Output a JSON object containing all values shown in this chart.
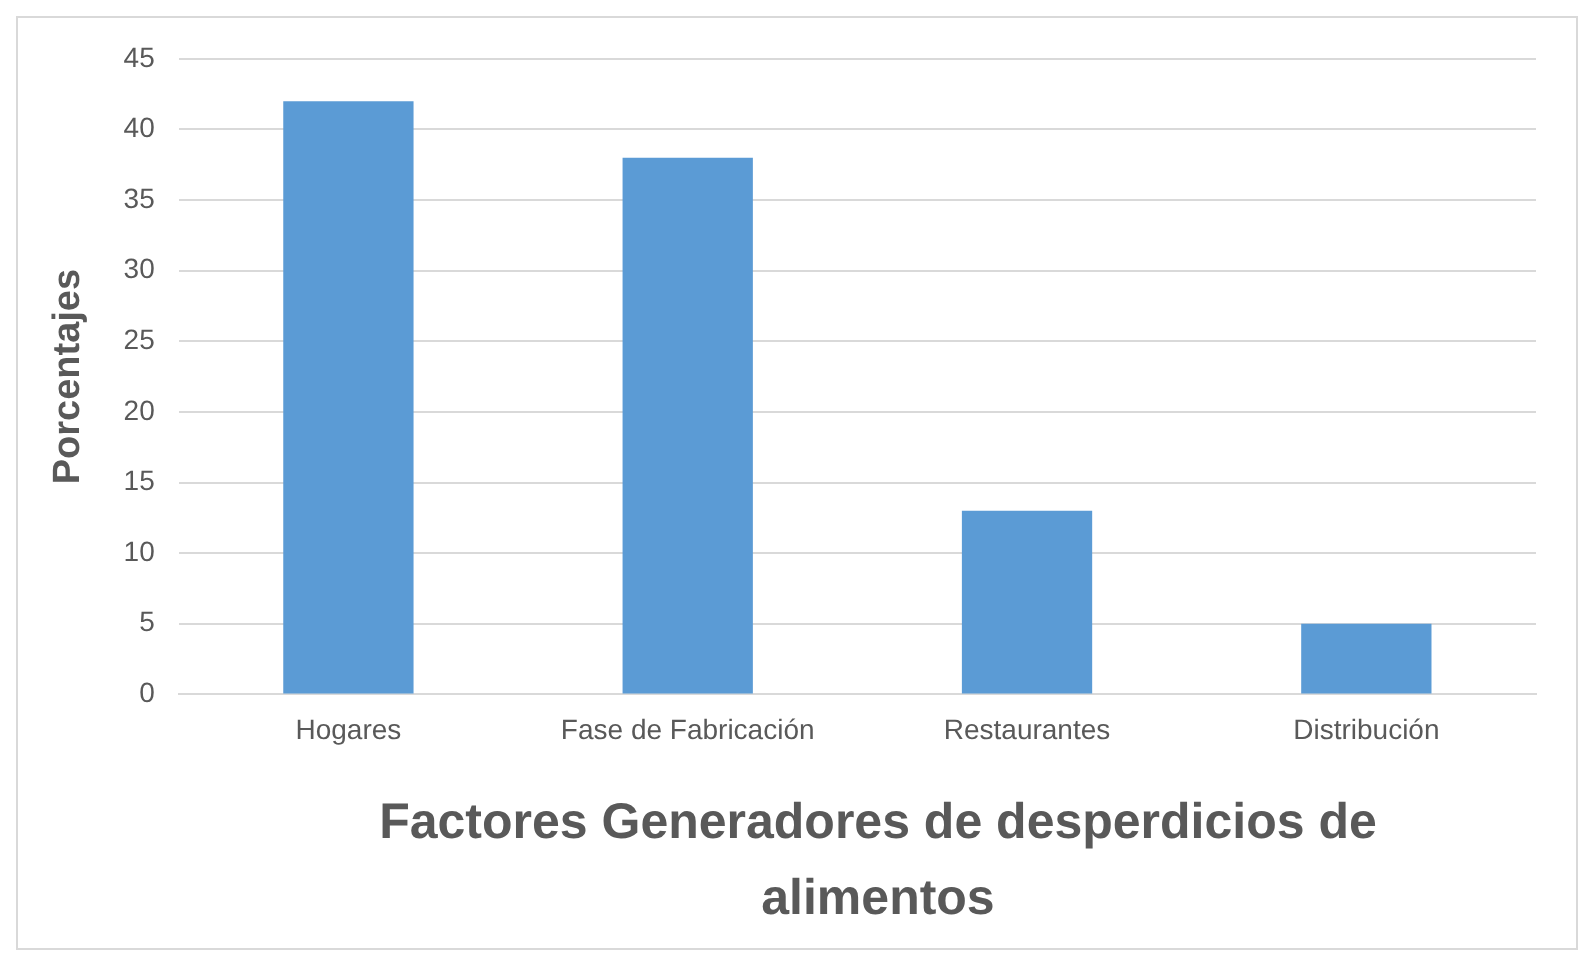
{
  "chart_data": {
    "type": "bar",
    "xlabel": "Factores Generadores de desperdicios de alimentos",
    "ylabel": "Porcentajes",
    "categories": [
      "Hogares",
      "Fase de Fabricación",
      "Restaurantes",
      "Distribución"
    ],
    "values": [
      42,
      38,
      13,
      5
    ],
    "color": "#5b9bd5",
    "ylim": [
      0,
      45
    ],
    "yticks": [
      0,
      5,
      10,
      15,
      20,
      25,
      30,
      35,
      40,
      45
    ],
    "grid": "y",
    "legend": false
  }
}
